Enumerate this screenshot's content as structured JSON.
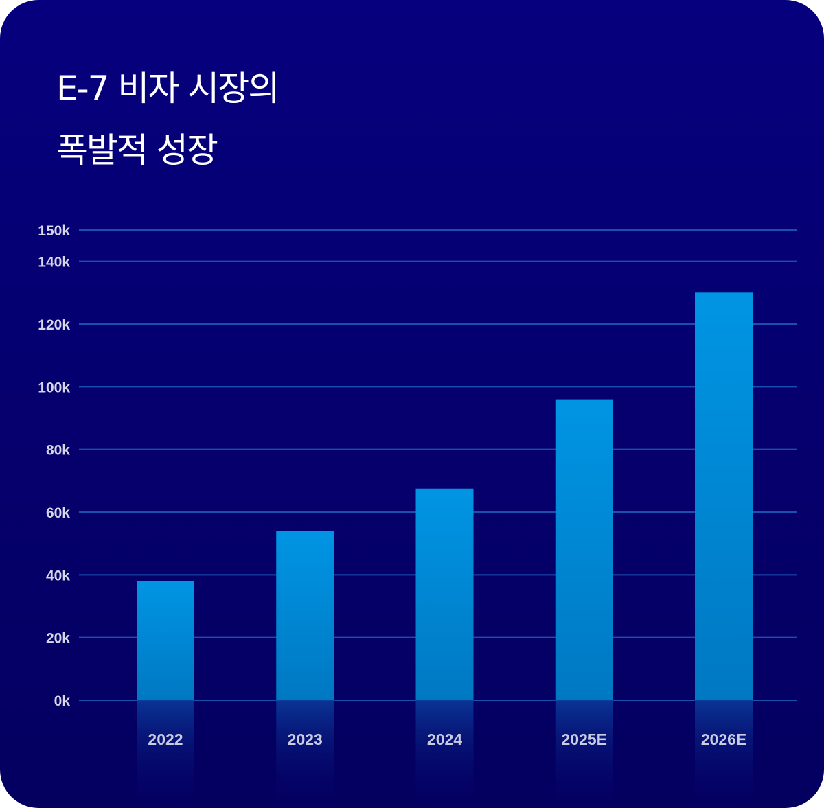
{
  "title_lines": [
    "E-7 비자 시장의",
    "폭발적 성장"
  ],
  "colors": {
    "background": "#05006e",
    "bar_top": "#0095e3",
    "bar_bottom": "#0078c2",
    "gridline": "#1a4fb0"
  },
  "chart_data": {
    "type": "bar",
    "title": "E-7 비자 시장의 폭발적 성장",
    "categories": [
      "2022",
      "2023",
      "2024",
      "2025E",
      "2026E"
    ],
    "values": [
      38000,
      54000,
      67500,
      96000,
      130000
    ],
    "ylim": [
      0,
      150000
    ],
    "yticks": [
      0,
      20000,
      40000,
      60000,
      80000,
      100000,
      120000,
      140000,
      150000
    ],
    "ytick_labels": [
      "0k",
      "20k",
      "40k",
      "60k",
      "80k",
      "100k",
      "120k",
      "140k",
      "150k"
    ],
    "grid": true,
    "xlabel": "",
    "ylabel": ""
  }
}
